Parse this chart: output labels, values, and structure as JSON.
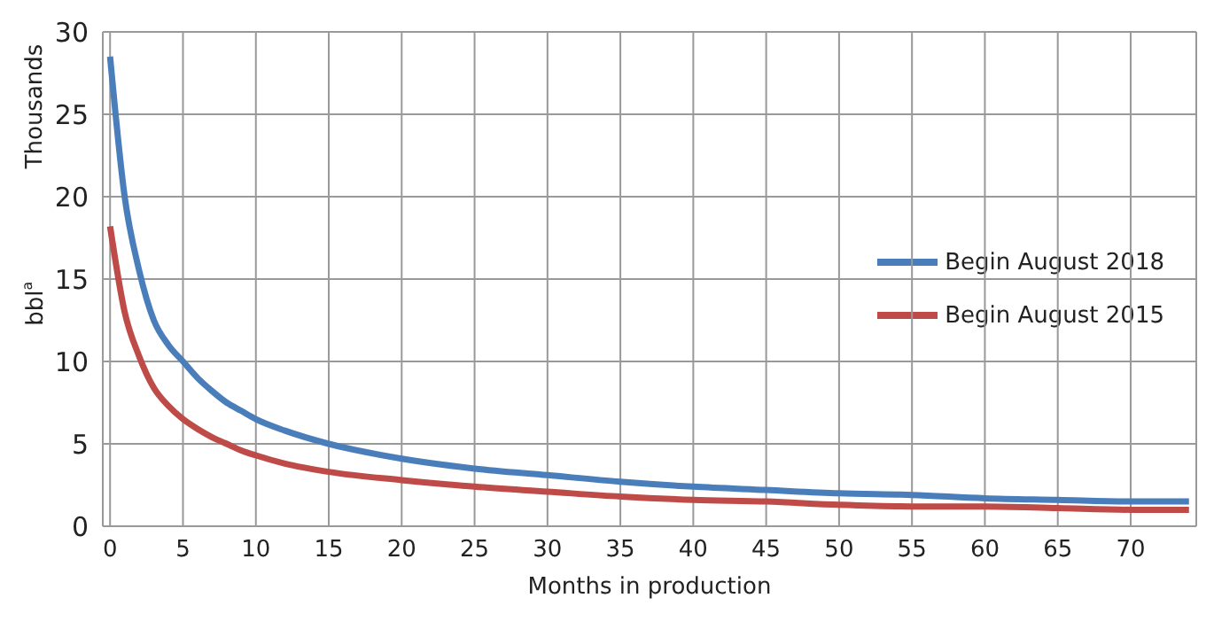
{
  "chart_data": {
    "type": "line",
    "xlabel": "Months in production",
    "ylabel": "bbl$^{a}$",
    "annotations": [
      "Thousands"
    ],
    "xlim": [
      -0.5,
      74.5
    ],
    "xticks": [
      0,
      5,
      10,
      15,
      20,
      25,
      30,
      35,
      40,
      45,
      50,
      55,
      60,
      65,
      70
    ],
    "ylim": [
      0,
      30
    ],
    "yticks": [
      0,
      5,
      10,
      15,
      20,
      25,
      30
    ],
    "grid": true,
    "legend": "right",
    "marker": "none",
    "line_style": "solid",
    "x": [
      0,
      1,
      2,
      3,
      4,
      5,
      6,
      7,
      8,
      9,
      10,
      12,
      15,
      20,
      25,
      30,
      35,
      40,
      45,
      50,
      55,
      60,
      65,
      70,
      74
    ],
    "series": [
      {
        "name": "Begin August 2018",
        "color": "#4a7ebb",
        "values": [
          28.5,
          20,
          15.5,
          12.5,
          11,
          10,
          9,
          8.2,
          7.5,
          7,
          6.5,
          5.8,
          5,
          4.1,
          3.5,
          3.1,
          2.7,
          2.4,
          2.2,
          2,
          1.9,
          1.7,
          1.6,
          1.5,
          1.5
        ]
      },
      {
        "name": "Begin August 2015",
        "color": "#be4b48",
        "values": [
          18.2,
          13,
          10.3,
          8.4,
          7.3,
          6.5,
          5.9,
          5.4,
          5,
          4.6,
          4.3,
          3.8,
          3.3,
          2.8,
          2.4,
          2.1,
          1.8,
          1.6,
          1.5,
          1.3,
          1.2,
          1.2,
          1.1,
          1,
          1
        ]
      }
    ]
  }
}
